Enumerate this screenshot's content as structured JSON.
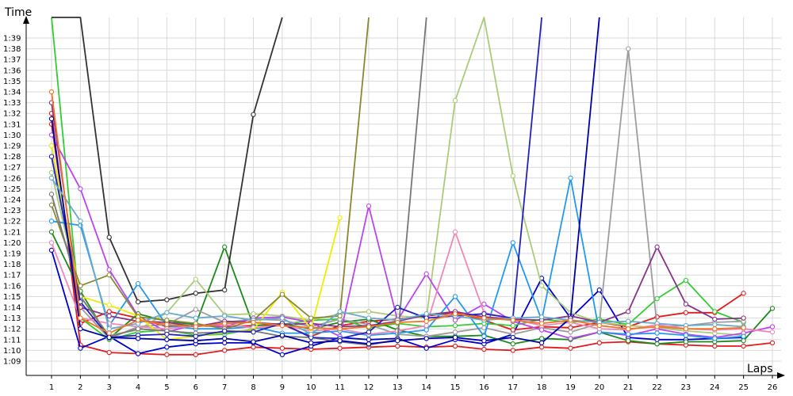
{
  "chart_data": {
    "type": "line",
    "xlabel": "Laps",
    "ylabel": "Time",
    "x": [
      1,
      2,
      3,
      4,
      5,
      6,
      7,
      8,
      9,
      10,
      11,
      12,
      13,
      14,
      15,
      16,
      17,
      18,
      19,
      20,
      21,
      22,
      23,
      24,
      25,
      26
    ],
    "xlim": [
      1,
      26
    ],
    "ylim_seconds": [
      548,
      581
    ],
    "y_tick_labels": [
      "1:09",
      "1:10",
      "1:11",
      "1:12",
      "1:13",
      "1:14",
      "1:15",
      "1:16",
      "1:17",
      "1:18",
      "1:19",
      "1:20",
      "1:21",
      "1:22",
      "1:23",
      "1:24",
      "1:25",
      "1:26",
      "1:27",
      "1:28",
      "1:29",
      "1:30",
      "1:31",
      "1:32",
      "1:33",
      "1:34",
      "1:35",
      "1:36",
      "1:37",
      "1:38",
      "1:39"
    ],
    "y_tick_values_seconds": [
      549,
      550,
      551,
      552,
      553,
      554,
      555,
      556,
      557,
      558,
      559,
      560,
      561,
      562,
      563,
      564,
      565,
      566,
      567,
      568,
      569,
      570,
      571,
      572,
      573,
      574,
      575,
      576,
      577,
      578,
      579
    ],
    "grid": true,
    "series": [
      {
        "color": "#e31a1c",
        "values": [
          572.0,
          550.5,
          549.8,
          549.7,
          549.6,
          549.6,
          550.0,
          550.3,
          550.2,
          550.1,
          550.2,
          550.3,
          550.4,
          550.3,
          550.4,
          550.1,
          550.0,
          550.3,
          550.2,
          550.7,
          550.8,
          550.6,
          550.5,
          550.4,
          550.4,
          550.7
        ]
      },
      {
        "color": "#0000cc",
        "values": [
          559.3,
          550.2,
          551.3,
          549.7,
          550.3,
          550.6,
          550.7,
          550.7,
          549.6,
          550.4,
          551.2,
          551.0,
          551.1,
          550.2,
          551.0,
          550.6,
          551.5,
          556.7,
          553.0,
          555.6,
          551.2,
          551.0,
          551.0,
          551.1,
          551.2,
          null
        ]
      },
      {
        "color": "#e31a1c",
        "values": [
          571.0,
          552.5,
          553.6,
          553.0,
          552.2,
          552.3,
          552.2,
          552.3,
          552.4,
          551.3,
          552.3,
          552.7,
          552.9,
          553.2,
          553.5,
          552.8,
          551.9,
          552.2,
          552.1,
          552.6,
          552.2,
          553.1,
          553.5,
          553.5,
          555.3,
          null
        ]
      },
      {
        "color": "#33cc33",
        "values": [
          581.0,
          553.0,
          551.0,
          551.7,
          551.9,
          551.4,
          551.5,
          552.0,
          552.4,
          552.8,
          552.9,
          552.1,
          552.5,
          552.2,
          552.3,
          552.5,
          552.3,
          552.9,
          552.6,
          552.9,
          552.4,
          554.8,
          556.5,
          553.6,
          552.6,
          null
        ]
      },
      {
        "color": "#1a8a1a",
        "values": [
          561.0,
          555.5,
          551.1,
          553.4,
          552.7,
          552.4,
          559.6,
          552.3,
          552.5,
          552.0,
          552.6,
          552.9,
          551.9,
          551.3,
          551.3,
          551.4,
          550.6,
          551.1,
          551.0,
          551.7,
          550.9,
          550.6,
          550.8,
          550.8,
          550.9,
          553.9
        ]
      },
      {
        "color": "#333333",
        "values": [
          581.0,
          581.0,
          560.5,
          554.5,
          554.7,
          555.3,
          555.6,
          571.9,
          581.0,
          null,
          null,
          null,
          null,
          null,
          null,
          null,
          null,
          null,
          null,
          null,
          null,
          null,
          null,
          null,
          null,
          null
        ]
      },
      {
        "color": "#aacc77",
        "values": [
          566.5,
          555.0,
          551.4,
          551.9,
          553.5,
          556.6,
          553.3,
          553.4,
          553.2,
          552.8,
          553.4,
          553.6,
          553.2,
          553.0,
          573.2,
          581.0,
          566.2,
          556.0,
          553.5,
          552.6,
          552.3,
          552.1,
          551.8,
          551.6,
          551.4,
          null
        ]
      },
      {
        "color": "#9d9d9d",
        "values": [
          569.0,
          554.0,
          551.1,
          552.2,
          552.4,
          553.8,
          552.6,
          552.9,
          552.8,
          552.2,
          552.9,
          552.4,
          551.5,
          551.3,
          551.7,
          552.1,
          551.5,
          552.1,
          551.7,
          552.5,
          578.0,
          552.2,
          552.3,
          552.6,
          552.7,
          null
        ]
      },
      {
        "color": "#bb44ee",
        "values": [
          570.0,
          565.0,
          557.5,
          553.2,
          551.7,
          552.4,
          552.2,
          553.0,
          553.1,
          552.6,
          551.3,
          563.4,
          552.8,
          557.1,
          552.8,
          554.3,
          552.7,
          551.9,
          551.1,
          551.7,
          551.4,
          552.0,
          551.5,
          551.2,
          551.6,
          552.2
        ]
      },
      {
        "color": "#2299ee",
        "values": [
          562.0,
          561.6,
          552.3,
          556.2,
          552.3,
          552.0,
          552.0,
          552.2,
          551.6,
          551.6,
          551.8,
          551.4,
          551.6,
          551.9,
          555.0,
          551.3,
          560.0,
          552.8,
          566.0,
          551.7,
          551.5,
          551.6,
          551.4,
          551.1,
          551.3,
          null
        ]
      },
      {
        "color": "#ee88bb",
        "values": [
          560.0,
          553.0,
          552.5,
          552.2,
          552.0,
          552.3,
          552.4,
          552.1,
          552.3,
          551.8,
          552.0,
          551.5,
          551.8,
          552.3,
          561.0,
          553.5,
          552.9,
          552.3,
          552.6,
          552.0,
          551.9,
          552.4,
          552.0,
          551.9,
          552.0,
          551.7
        ]
      },
      {
        "color": "#883388",
        "values": [
          573.0,
          554.0,
          553.2,
          552.7,
          552.6,
          552.2,
          552.7,
          552.6,
          552.4,
          552.5,
          552.2,
          552.3,
          552.7,
          553.3,
          553.6,
          553.1,
          552.9,
          552.8,
          553.2,
          552.6,
          553.6,
          559.6,
          554.3,
          552.9,
          553.0,
          null
        ]
      },
      {
        "color": "#eeee00",
        "values": [
          569.0,
          555.0,
          554.2,
          553.2,
          551.0,
          551.3,
          551.7,
          551.9,
          555.4,
          552.0,
          562.3,
          null,
          null,
          null,
          null,
          null,
          null,
          null,
          null,
          null,
          null,
          null,
          null,
          null,
          null,
          null
        ]
      },
      {
        "color": "#888833",
        "values": [
          563.5,
          556.0,
          557.0,
          553.1,
          552.8,
          552.5,
          552.0,
          552.8,
          555.2,
          553.0,
          553.2,
          581.0,
          null,
          null,
          null,
          null,
          null,
          null,
          null,
          null,
          null,
          null,
          null,
          null,
          null,
          null
        ]
      },
      {
        "color": "#777777",
        "values": [
          564.5,
          555.0,
          551.3,
          552.0,
          551.8,
          551.6,
          551.7,
          551.8,
          551.3,
          551.2,
          550.8,
          550.5,
          551.0,
          581.0,
          null,
          null,
          null,
          null,
          null,
          null,
          null,
          null,
          null,
          null,
          null,
          null
        ]
      },
      {
        "color": "#2222bb",
        "values": [
          568.0,
          554.5,
          551.2,
          551.4,
          551.5,
          551.3,
          551.8,
          551.7,
          552.5,
          551.2,
          551.1,
          551.7,
          554.0,
          553.0,
          553.2,
          553.4,
          553.0,
          581.0,
          null,
          null,
          null,
          null,
          null,
          null,
          null,
          null
        ]
      },
      {
        "color": "#0000aa",
        "values": [
          571.5,
          552.0,
          551.2,
          551.1,
          551.0,
          550.9,
          551.1,
          550.8,
          551.4,
          550.7,
          550.9,
          550.6,
          550.9,
          551.1,
          551.2,
          550.9,
          551.2,
          550.7,
          553.0,
          581.0,
          null,
          null,
          null,
          null,
          null,
          null
        ]
      },
      {
        "color": "#66aacc",
        "values": [
          566.0,
          562.0,
          552.0,
          552.5,
          553.5,
          553.0,
          553.2,
          552.8,
          553.0,
          551.5,
          553.6,
          553.0,
          552.8,
          553.4,
          553.2,
          552.8,
          553.0,
          553.1,
          552.8,
          552.6,
          552.7,
          552.5,
          552.3,
          552.4,
          552.2,
          null
        ]
      },
      {
        "color": "#ee7722",
        "values": [
          574.0,
          553.0,
          551.6,
          552.8,
          552.4,
          552.2,
          552.5,
          552.6,
          552.3,
          552.1,
          552.0,
          552.2,
          552.6,
          552.7,
          553.4,
          553.0,
          552.8,
          552.5,
          552.8,
          552.3,
          552.0,
          552.2,
          552.0,
          552.0,
          552.1,
          null
        ]
      }
    ]
  }
}
